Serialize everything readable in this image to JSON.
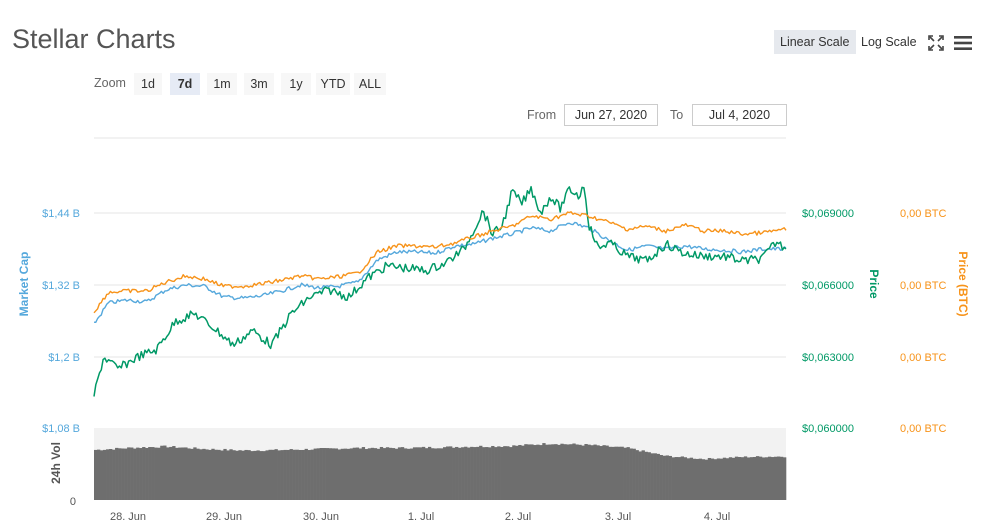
{
  "header": {
    "title": "Stellar Charts",
    "linear_scale": "Linear Scale",
    "log_scale": "Log Scale",
    "fullscreen_icon": "fullscreen-icon",
    "menu_icon": "hamburger-menu-icon"
  },
  "zoom": {
    "label": "Zoom",
    "options": [
      "1d",
      "7d",
      "1m",
      "3m",
      "1y",
      "YTD",
      "ALL"
    ],
    "active": "7d"
  },
  "range": {
    "from_label": "From",
    "from_value": "Jun 27, 2020",
    "to_label": "To",
    "to_value": "Jul 4, 2020"
  },
  "colors": {
    "market_cap": "#55a8dc",
    "price_usd": "#009966",
    "price_btc": "#f7931a",
    "volume": "#6e6e6e",
    "grid": "#e6e6e6"
  },
  "chart_data": {
    "type": "line",
    "x_ticks": [
      "28. Jun",
      "29. Jun",
      "30. Jun",
      "1. Jul",
      "2. Jul",
      "3. Jul",
      "4. Jul"
    ],
    "x_range": [
      27.45,
      34.65
    ],
    "axes": {
      "market_cap": {
        "label": "Market Cap",
        "ticks": [
          "$1,44 B",
          "$1,32 B",
          "$1,2 B",
          "$1,08 B"
        ],
        "range": [
          1.08,
          1.44
        ]
      },
      "price": {
        "label": "Price",
        "ticks": [
          "$0,069000",
          "$0,066000",
          "$0,063000",
          "$0,060000"
        ],
        "range": [
          0.06,
          0.069
        ]
      },
      "price_btc": {
        "label": "Price (BTC)",
        "ticks": [
          "0,00 BTC",
          "0,00 BTC",
          "0,00 BTC",
          "0,00 BTC"
        ]
      },
      "volume": {
        "label": "24h Vol",
        "ticks": [
          "0"
        ]
      }
    },
    "series": [
      {
        "name": "Market Cap",
        "axis": "market_cap",
        "x": [
          27.45,
          27.6,
          27.8,
          28.0,
          28.2,
          28.4,
          28.6,
          28.8,
          29.0,
          29.2,
          29.4,
          29.6,
          29.8,
          30.0,
          30.2,
          30.4,
          30.6,
          30.8,
          31.0,
          31.2,
          31.4,
          31.6,
          31.8,
          32.0,
          32.2,
          32.4,
          32.6,
          32.8,
          33.0,
          33.2,
          33.4,
          33.6,
          33.8,
          34.0,
          34.2,
          34.4,
          34.6
        ],
        "values": [
          1.255,
          1.29,
          1.295,
          1.292,
          1.312,
          1.32,
          1.318,
          1.3,
          1.298,
          1.302,
          1.31,
          1.32,
          1.315,
          1.318,
          1.325,
          1.362,
          1.375,
          1.375,
          1.373,
          1.385,
          1.388,
          1.398,
          1.405,
          1.415,
          1.41,
          1.425,
          1.415,
          1.395,
          1.378,
          1.385,
          1.38,
          1.385,
          1.38,
          1.378,
          1.375,
          1.38,
          1.38
        ]
      },
      {
        "name": "Price",
        "axis": "price",
        "x": [
          27.45,
          27.55,
          27.7,
          27.9,
          28.1,
          28.3,
          28.5,
          28.7,
          28.9,
          29.1,
          29.3,
          29.5,
          29.7,
          29.9,
          30.1,
          30.3,
          30.5,
          30.7,
          30.9,
          31.1,
          31.3,
          31.5,
          31.6,
          31.7,
          31.8,
          31.9,
          32.0,
          32.1,
          32.2,
          32.3,
          32.4,
          32.5,
          32.55,
          32.6,
          32.7,
          32.8,
          33.0,
          33.2,
          33.4,
          33.6,
          33.8,
          34.0,
          34.2,
          34.4,
          34.55,
          34.62
        ],
        "values": [
          0.0614,
          0.063,
          0.0625,
          0.063,
          0.0633,
          0.0645,
          0.0648,
          0.0642,
          0.0635,
          0.0641,
          0.0635,
          0.0648,
          0.0655,
          0.0658,
          0.0655,
          0.0663,
          0.0668,
          0.0667,
          0.0666,
          0.0669,
          0.0675,
          0.0691,
          0.0681,
          0.0685,
          0.0699,
          0.0694,
          0.07,
          0.069,
          0.0697,
          0.0692,
          0.07,
          0.0697,
          0.0702,
          0.0685,
          0.0675,
          0.0678,
          0.0672,
          0.067,
          0.0677,
          0.0673,
          0.0672,
          0.0672,
          0.067,
          0.0671,
          0.0678,
          0.0676
        ]
      },
      {
        "name": "Price (BTC)",
        "axis": "price_btc",
        "x": [
          27.45,
          27.6,
          27.8,
          28.0,
          28.2,
          28.4,
          28.6,
          28.8,
          29.0,
          29.2,
          29.4,
          29.6,
          29.8,
          30.0,
          30.2,
          30.4,
          30.6,
          30.8,
          31.0,
          31.2,
          31.4,
          31.6,
          31.8,
          32.0,
          32.2,
          32.4,
          32.6,
          32.8,
          33.0,
          33.2,
          33.4,
          33.6,
          33.8,
          34.0,
          34.2,
          34.4,
          34.6
        ],
        "values": [
          1.275,
          1.308,
          1.31,
          1.31,
          1.325,
          1.335,
          1.33,
          1.318,
          1.318,
          1.322,
          1.328,
          1.335,
          1.33,
          1.334,
          1.34,
          1.375,
          1.385,
          1.385,
          1.383,
          1.39,
          1.4,
          1.41,
          1.418,
          1.435,
          1.43,
          1.44,
          1.435,
          1.425,
          1.413,
          1.418,
          1.41,
          1.42,
          1.41,
          1.41,
          1.405,
          1.407,
          1.412
        ]
      },
      {
        "name": "24h Vol",
        "axis": "volume",
        "x": [
          27.45,
          27.8,
          28.2,
          28.6,
          29.0,
          29.4,
          29.8,
          30.2,
          30.6,
          31.0,
          31.4,
          31.8,
          32.2,
          32.6,
          33.0,
          33.4,
          33.8,
          34.2,
          34.6
        ],
        "values": [
          1.0,
          1.04,
          1.07,
          1.02,
          0.99,
          1.0,
          1.02,
          1.04,
          1.04,
          1.05,
          1.07,
          1.08,
          1.13,
          1.1,
          1.04,
          0.88,
          0.82,
          0.86,
          0.87
        ]
      }
    ]
  }
}
